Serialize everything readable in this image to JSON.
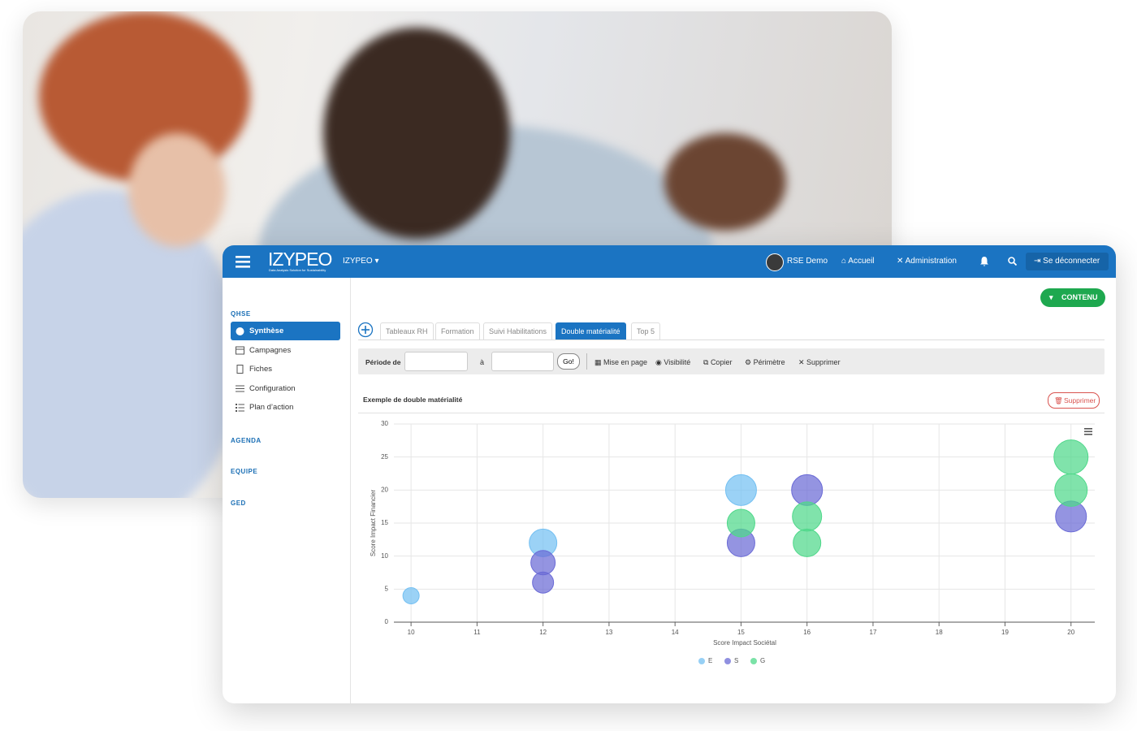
{
  "header": {
    "logo": "IZYPEO",
    "tagline": "Data Analysis Solution for Sustainability",
    "org": "IZYPEO",
    "user": "RSE Demo",
    "nav": [
      "Accueil",
      "Administration"
    ],
    "logout": "Se déconnecter"
  },
  "sidebar": {
    "sections": [
      {
        "title": "QHSE",
        "items": [
          "Synthèse",
          "Campagnes",
          "Fiches",
          "Configuration",
          "Plan d’action"
        ]
      },
      {
        "title": "AGENDA"
      },
      {
        "title": "EQUIPE"
      },
      {
        "title": "GED"
      }
    ]
  },
  "content_button": "CONTENU",
  "tabs": [
    "Tableaux RH",
    "Formation",
    "Suivi Habilitations",
    "Double matérialité",
    "Top 5"
  ],
  "toolbar": {
    "period_from": "Période de",
    "period_to": "à",
    "go": "Go!",
    "actions": [
      "Mise en page",
      "Visibilité",
      "Copier",
      "Périmètre",
      "Supprimer"
    ]
  },
  "widget": {
    "title": "Exemple de double matérialité",
    "delete": "Supprimer"
  },
  "chart_data": {
    "type": "bubble",
    "x_label": "Score Impact Sociétal",
    "y_label": "Score Impact Financier",
    "xlim": [
      9.74,
      20.36
    ],
    "ylim": [
      0,
      30
    ],
    "xticks": [
      10,
      11,
      12,
      13,
      14,
      15,
      16,
      17,
      18,
      19,
      20
    ],
    "yticks": [
      0,
      5,
      10,
      15,
      20,
      25,
      30
    ],
    "grid": true,
    "legend": "bottom",
    "series": [
      {
        "name": "E",
        "color": "#74c0f2",
        "x": [
          10,
          12,
          15
        ],
        "y": [
          4,
          12,
          20
        ],
        "z": [
          10,
          17,
          19
        ]
      },
      {
        "name": "S",
        "color": "#6b6bd6",
        "x": [
          12,
          12,
          15,
          16,
          20
        ],
        "y": [
          9,
          6,
          12,
          20,
          16
        ],
        "z": [
          15,
          13,
          17,
          19,
          19
        ]
      },
      {
        "name": "G",
        "color": "#4fd88a",
        "x": [
          15,
          16,
          16,
          20,
          20
        ],
        "y": [
          15,
          16,
          12,
          25,
          20
        ],
        "z": [
          17,
          18,
          17,
          21,
          20
        ]
      }
    ]
  }
}
